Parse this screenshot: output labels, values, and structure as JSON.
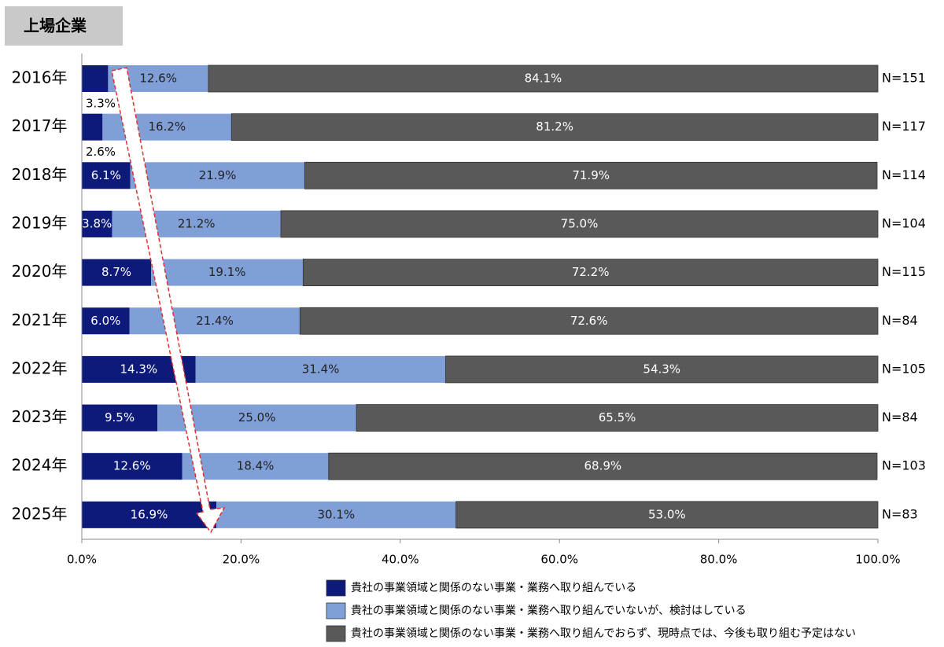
{
  "chart_data": {
    "type": "stacked_bar_horizontal",
    "title": "上場企業",
    "categories": [
      "2016年",
      "2017年",
      "2018年",
      "2019年",
      "2020年",
      "2021年",
      "2022年",
      "2023年",
      "2024年",
      "2025年"
    ],
    "series": [
      {
        "name": "貴社の事業領域と関係のない事業・業務へ取り組んでいる",
        "color": "#0d1a7a",
        "values": [
          3.3,
          2.6,
          6.1,
          3.8,
          8.7,
          6.0,
          14.3,
          9.5,
          12.6,
          16.9
        ],
        "value_labels": [
          "3.3%",
          "2.6%",
          "6.1%",
          "3.8%",
          "8.7%",
          "6.0%",
          "14.3%",
          "9.5%",
          "12.6%",
          "16.9%"
        ]
      },
      {
        "name": "貴社の事業領域と関係のない事業・業務へ取り組んでいないが、検討はしている",
        "color": "#7f9fd6",
        "values": [
          12.6,
          16.2,
          21.9,
          21.2,
          19.1,
          21.4,
          31.4,
          25.0,
          18.4,
          30.1
        ],
        "value_labels": [
          "12.6%",
          "16.2%",
          "21.9%",
          "21.2%",
          "19.1%",
          "21.4%",
          "31.4%",
          "25.0%",
          "18.4%",
          "30.1%"
        ]
      },
      {
        "name": "貴社の事業領域と関係のない事業・業務へ取り組んでおらず、現時点では、今後も取り組む予定はない",
        "color": "#595959",
        "values": [
          84.1,
          81.2,
          71.9,
          75.0,
          72.2,
          72.6,
          54.3,
          65.5,
          68.9,
          53.0
        ],
        "value_labels": [
          "84.1%",
          "81.2%",
          "71.9%",
          "75.0%",
          "72.2%",
          "72.6%",
          "54.3%",
          "65.5%",
          "68.9%",
          "53.0%"
        ]
      }
    ],
    "n_labels": [
      "N=151",
      "N=117",
      "N=114",
      "N=104",
      "N=115",
      "N=84",
      "N=105",
      "N=84",
      "N=103",
      "N=83"
    ],
    "xlim": [
      0,
      100
    ],
    "xticks": [
      {
        "value": 0,
        "label": "0.0%"
      },
      {
        "value": 20,
        "label": "20.0%"
      },
      {
        "value": 40,
        "label": "40.0%"
      },
      {
        "value": 60,
        "label": "60.0%"
      },
      {
        "value": 80,
        "label": "80.0%"
      },
      {
        "value": 100,
        "label": "100.0%"
      }
    ]
  }
}
